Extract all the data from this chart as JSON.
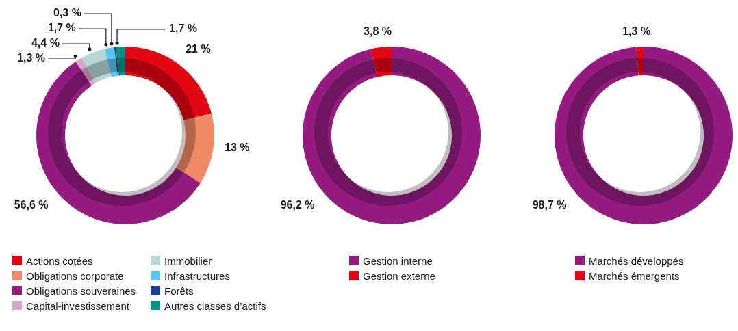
{
  "chart_data": [
    {
      "type": "donut",
      "categories": [
        "Actions cotées",
        "Obligations corporate",
        "Obligations souveraines",
        "Capital-investissement",
        "Immobilier",
        "Infrastructures",
        "Forêts",
        "Autres classes d’actifs"
      ],
      "values": [
        21,
        13,
        56.6,
        1.3,
        4.4,
        1.7,
        0.3,
        1.7
      ],
      "value_labels": [
        "21 %",
        "13 %",
        "56,6 %",
        "1,3 %",
        "4,4 %",
        "1,7 %",
        "0,3 %",
        "1,7 %"
      ],
      "colors": [
        "#e30613",
        "#f08a65",
        "#951b81",
        "#d4a5cf",
        "#b5d8d6",
        "#5bc5f2",
        "#1d3f8f",
        "#009384"
      ],
      "legend": "bottom"
    },
    {
      "type": "donut",
      "categories": [
        "Gestion interne",
        "Gestion externe"
      ],
      "values": [
        96.2,
        3.8
      ],
      "value_labels": [
        "96,2 %",
        "3,8 %"
      ],
      "colors": [
        "#951b81",
        "#e30613"
      ],
      "legend": "bottom"
    },
    {
      "type": "donut",
      "categories": [
        "Marchés développés",
        "Marchés émergents"
      ],
      "values": [
        98.7,
        1.3
      ],
      "value_labels": [
        "98,7 %",
        "1,3 %"
      ],
      "colors": [
        "#951b81",
        "#e30613"
      ],
      "legend": "bottom"
    }
  ]
}
